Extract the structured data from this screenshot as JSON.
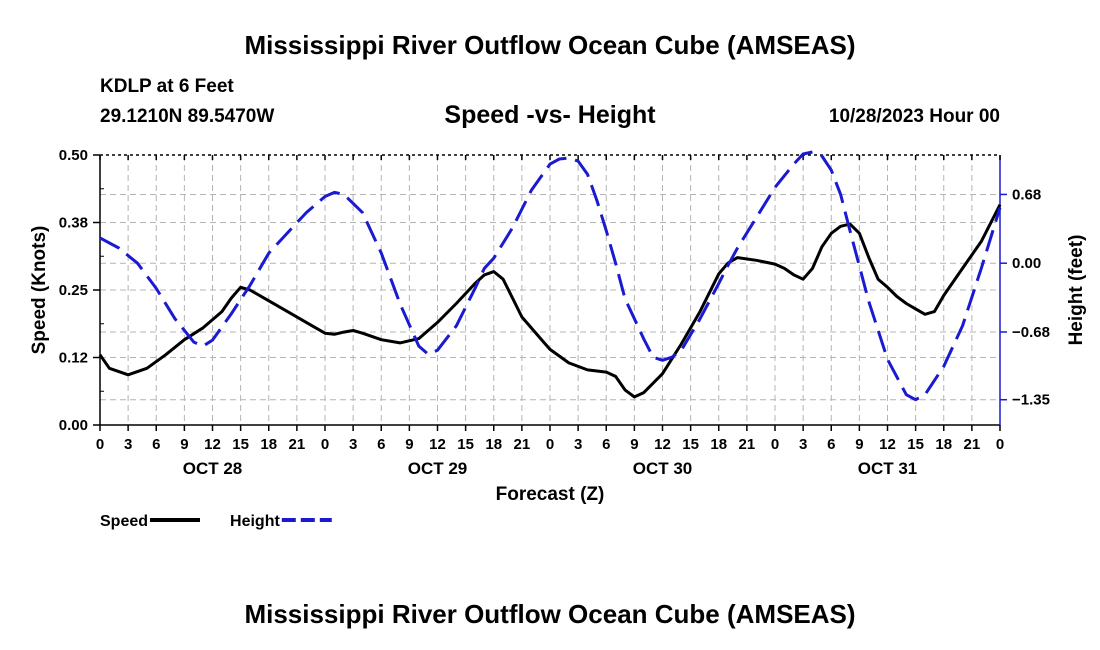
{
  "header": {
    "title": "Mississippi River Outflow Ocean Cube (AMSEAS)",
    "station": "KDLP at 6 Feet",
    "coords": "29.1210N  89.5470W",
    "subtitle": "Speed -vs- Height",
    "datetime": "10/28/2023 Hour 00"
  },
  "footer": {
    "title": "Mississippi River Outflow Ocean Cube (AMSEAS)"
  },
  "chart_data": {
    "type": "line",
    "title": "Speed -vs- Height",
    "xlabel": "Forecast (Z)",
    "ylabel": "Speed (Knots)",
    "y2label": "Height (feet)",
    "xlim": [
      0,
      96
    ],
    "ylim": [
      0,
      0.5
    ],
    "y2lim": [
      -1.6,
      1.07
    ],
    "x_tick_labels": [
      "0",
      "3",
      "6",
      "9",
      "12",
      "15",
      "18",
      "21",
      "0",
      "3",
      "6",
      "9",
      "12",
      "15",
      "18",
      "21",
      "0",
      "3",
      "6",
      "9",
      "12",
      "15",
      "18",
      "21",
      "0",
      "3",
      "6",
      "9",
      "12",
      "15",
      "18",
      "21",
      "0"
    ],
    "day_labels": [
      {
        "hour": 12,
        "label": "OCT 28"
      },
      {
        "hour": 36,
        "label": "OCT 29"
      },
      {
        "hour": 60,
        "label": "OCT 30"
      },
      {
        "hour": 84,
        "label": "OCT 31"
      }
    ],
    "y_ticks": [
      {
        "value": 0.0,
        "label": "0.00"
      },
      {
        "value": 0.125,
        "label": "0.12"
      },
      {
        "value": 0.25,
        "label": "0.25"
      },
      {
        "value": 0.375,
        "label": "0.38"
      },
      {
        "value": 0.5,
        "label": "0.50"
      }
    ],
    "y2_ticks": [
      {
        "value": 0.68,
        "label": "0.68"
      },
      {
        "value": 0.0,
        "label": "0.00"
      },
      {
        "value": -0.68,
        "label": "−0.68"
      },
      {
        "value": -1.35,
        "label": "−1.35"
      }
    ],
    "series": [
      {
        "name": "Speed",
        "axis": "left",
        "color": "#000000",
        "dash": "solid",
        "points": [
          [
            0,
            0.13
          ],
          [
            1,
            0.105
          ],
          [
            3,
            0.093
          ],
          [
            5,
            0.105
          ],
          [
            7,
            0.13
          ],
          [
            9,
            0.158
          ],
          [
            11,
            0.18
          ],
          [
            13,
            0.21
          ],
          [
            14,
            0.235
          ],
          [
            15,
            0.255
          ],
          [
            16,
            0.25
          ],
          [
            18,
            0.23
          ],
          [
            20,
            0.21
          ],
          [
            22,
            0.19
          ],
          [
            24,
            0.17
          ],
          [
            25,
            0.168
          ],
          [
            26,
            0.172
          ],
          [
            27,
            0.175
          ],
          [
            28,
            0.17
          ],
          [
            30,
            0.158
          ],
          [
            32,
            0.152
          ],
          [
            34,
            0.16
          ],
          [
            36,
            0.19
          ],
          [
            38,
            0.225
          ],
          [
            40,
            0.262
          ],
          [
            41,
            0.278
          ],
          [
            42,
            0.284
          ],
          [
            43,
            0.27
          ],
          [
            45,
            0.2
          ],
          [
            47,
            0.16
          ],
          [
            48,
            0.14
          ],
          [
            50,
            0.115
          ],
          [
            52,
            0.102
          ],
          [
            54,
            0.098
          ],
          [
            55,
            0.09
          ],
          [
            56,
            0.065
          ],
          [
            57,
            0.052
          ],
          [
            58,
            0.06
          ],
          [
            60,
            0.095
          ],
          [
            62,
            0.15
          ],
          [
            64,
            0.21
          ],
          [
            65,
            0.245
          ],
          [
            66,
            0.28
          ],
          [
            67,
            0.3
          ],
          [
            68,
            0.31
          ],
          [
            70,
            0.305
          ],
          [
            72,
            0.298
          ],
          [
            73,
            0.29
          ],
          [
            74,
            0.278
          ],
          [
            75,
            0.27
          ],
          [
            76,
            0.29
          ],
          [
            77,
            0.33
          ],
          [
            78,
            0.355
          ],
          [
            79,
            0.368
          ],
          [
            80,
            0.372
          ],
          [
            81,
            0.355
          ],
          [
            82,
            0.31
          ],
          [
            83,
            0.27
          ],
          [
            84,
            0.255
          ],
          [
            85,
            0.238
          ],
          [
            86,
            0.225
          ],
          [
            87,
            0.215
          ],
          [
            88,
            0.205
          ],
          [
            89,
            0.21
          ],
          [
            90,
            0.24
          ],
          [
            92,
            0.29
          ],
          [
            94,
            0.34
          ],
          [
            96,
            0.408
          ]
        ]
      },
      {
        "name": "Height",
        "axis": "right",
        "color": "#1a1ad0",
        "dash": "dashed",
        "points": [
          [
            0,
            0.25
          ],
          [
            2,
            0.15
          ],
          [
            4,
            0.0
          ],
          [
            6,
            -0.25
          ],
          [
            8,
            -0.55
          ],
          [
            10,
            -0.78
          ],
          [
            11,
            -0.82
          ],
          [
            12,
            -0.76
          ],
          [
            14,
            -0.5
          ],
          [
            16,
            -0.22
          ],
          [
            18,
            0.1
          ],
          [
            20,
            0.3
          ],
          [
            22,
            0.5
          ],
          [
            24,
            0.66
          ],
          [
            25,
            0.7
          ],
          [
            26,
            0.68
          ],
          [
            28,
            0.5
          ],
          [
            30,
            0.1
          ],
          [
            32,
            -0.4
          ],
          [
            34,
            -0.82
          ],
          [
            35,
            -0.9
          ],
          [
            36,
            -0.86
          ],
          [
            38,
            -0.62
          ],
          [
            40,
            -0.25
          ],
          [
            41,
            -0.05
          ],
          [
            42,
            0.05
          ],
          [
            44,
            0.35
          ],
          [
            46,
            0.72
          ],
          [
            48,
            0.98
          ],
          [
            49,
            1.03
          ],
          [
            50,
            1.04
          ],
          [
            51,
            1.01
          ],
          [
            52,
            0.88
          ],
          [
            53,
            0.62
          ],
          [
            54,
            0.32
          ],
          [
            55,
            0.0
          ],
          [
            56,
            -0.35
          ],
          [
            58,
            -0.75
          ],
          [
            59,
            -0.93
          ],
          [
            60,
            -0.96
          ],
          [
            61,
            -0.93
          ],
          [
            62,
            -0.86
          ],
          [
            64,
            -0.55
          ],
          [
            66,
            -0.2
          ],
          [
            67,
            -0.02
          ],
          [
            68,
            0.15
          ],
          [
            70,
            0.45
          ],
          [
            72,
            0.75
          ],
          [
            74,
            0.98
          ],
          [
            75,
            1.08
          ],
          [
            76,
            1.1
          ],
          [
            77,
            1.06
          ],
          [
            78,
            0.92
          ],
          [
            79,
            0.68
          ],
          [
            80,
            0.32
          ],
          [
            82,
            -0.38
          ],
          [
            84,
            -0.95
          ],
          [
            86,
            -1.3
          ],
          [
            87,
            -1.35
          ],
          [
            88,
            -1.3
          ],
          [
            90,
            -1.02
          ],
          [
            92,
            -0.62
          ],
          [
            94,
            -0.05
          ],
          [
            96,
            0.55
          ]
        ]
      }
    ],
    "legend": [
      {
        "label": "Speed",
        "color": "#000000",
        "dash": "solid"
      },
      {
        "label": "Height",
        "color": "#1a1ad0",
        "dash": "dashed"
      }
    ]
  }
}
